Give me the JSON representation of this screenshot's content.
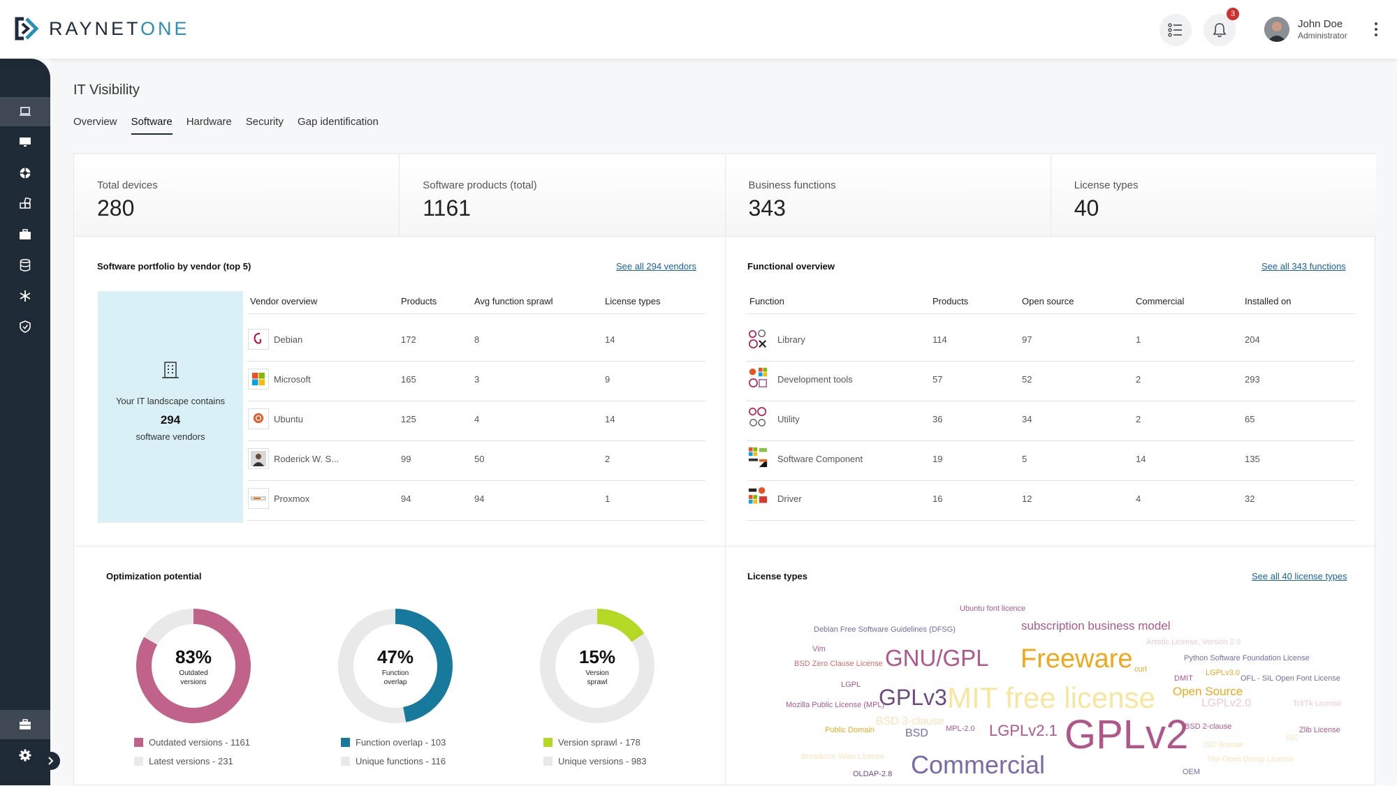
{
  "brand": {
    "name_part1": "RAYNET",
    "name_part2": "ONE"
  },
  "user": {
    "name": "John Doe",
    "role": "Administrator",
    "notifications": "3"
  },
  "page": {
    "title": "IT Visibility"
  },
  "tabs": [
    {
      "label": "Overview",
      "active": false
    },
    {
      "label": "Software",
      "active": true
    },
    {
      "label": "Hardware",
      "active": false
    },
    {
      "label": "Security",
      "active": false
    },
    {
      "label": "Gap identification",
      "active": false
    }
  ],
  "kpis": [
    {
      "label": "Total devices",
      "value": "280"
    },
    {
      "label": "Software products (total)",
      "value": "1161"
    },
    {
      "label": "Business functions",
      "value": "343"
    },
    {
      "label": "License types",
      "value": "40"
    }
  ],
  "vendors": {
    "title": "Software portfolio by vendor (top 5)",
    "link": "See all 294 vendors",
    "summary": {
      "line1": "Your IT landscape contains",
      "count": "294",
      "line2": "software vendors"
    },
    "columns": [
      "Vendor overview",
      "Products",
      "Avg function sprawl",
      "License types"
    ],
    "rows": [
      {
        "name": "Debian",
        "products": "172",
        "sprawl": "8",
        "licenses": "14"
      },
      {
        "name": "Microsoft",
        "products": "165",
        "sprawl": "3",
        "licenses": "9"
      },
      {
        "name": "Ubuntu",
        "products": "125",
        "sprawl": "4",
        "licenses": "14"
      },
      {
        "name": "Roderick W. S...",
        "products": "99",
        "sprawl": "50",
        "licenses": "2"
      },
      {
        "name": "Proxmox",
        "products": "94",
        "sprawl": "94",
        "licenses": "1"
      }
    ]
  },
  "functions": {
    "title": "Functional overview",
    "link": "See all 343 functions",
    "columns": [
      "Function",
      "Products",
      "Open source",
      "Commercial",
      "Installed on"
    ],
    "rows": [
      {
        "name": "Library",
        "products": "114",
        "open": "97",
        "commercial": "1",
        "installed": "204"
      },
      {
        "name": "Development tools",
        "products": "57",
        "open": "52",
        "commercial": "2",
        "installed": "293"
      },
      {
        "name": "Utility",
        "products": "36",
        "open": "34",
        "commercial": "2",
        "installed": "65"
      },
      {
        "name": "Software Component",
        "products": "19",
        "open": "5",
        "commercial": "14",
        "installed": "135"
      },
      {
        "name": "Driver",
        "products": "16",
        "open": "12",
        "commercial": "4",
        "installed": "32"
      }
    ]
  },
  "optimization": {
    "title": "Optimization potential",
    "donuts": [
      {
        "pct": "83%",
        "label1": "Outdated",
        "label2": "versions",
        "fraction": 0.834,
        "color": "#c0628a",
        "legend": [
          "Outdated versions - 1161",
          "Latest versions - 231"
        ]
      },
      {
        "pct": "47%",
        "label1": "Function",
        "label2": "overlap",
        "fraction": 0.47,
        "color": "#177a9c",
        "legend": [
          "Function overlap - 103",
          "Unique functions - 116"
        ]
      },
      {
        "pct": "15%",
        "label1": "Version",
        "label2": "sprawl",
        "fraction": 0.153,
        "color": "#b5d824",
        "legend": [
          "Version sprawl - 178",
          "Unique versions - 983"
        ]
      }
    ],
    "track_color": "#e9e9ea"
  },
  "license_cloud": {
    "title": "License types",
    "link": "See all 40 license types",
    "words": [
      {
        "text": "Ubuntu font licence",
        "color": "#b0578a"
      },
      {
        "text": "Debian Free Software Guidelines (DFSG)",
        "color": "#7a6aa8"
      },
      {
        "text": "subscription business model",
        "color": "#b0578a"
      },
      {
        "text": "Artistic License, Version 2.0",
        "color": "#f2c8cf"
      },
      {
        "text": "Vim",
        "color": "#b0578a"
      },
      {
        "text": "Python Software Foundation License",
        "color": "#7a6aa8"
      },
      {
        "text": "BSD Zero Clause License",
        "color": "#d96a6a"
      },
      {
        "text": "GNU/GPL",
        "color": "#b0578a"
      },
      {
        "text": "Freeware",
        "color": "#f0a81a"
      },
      {
        "text": "LGPLv3.0",
        "color": "#f0a81a"
      },
      {
        "text": "curl",
        "color": "#f0a81a"
      },
      {
        "text": "DMIT",
        "color": "#b0578a"
      },
      {
        "text": "OFL - SIL Open Font License",
        "color": "#7a6aa8"
      },
      {
        "text": "LGPL",
        "color": "#b0578a"
      },
      {
        "text": "Open Source",
        "color": "#f0a81a"
      },
      {
        "text": "GPLv3",
        "color": "#6a4b80"
      },
      {
        "text": "MIT free license",
        "color": "#f7e79e"
      },
      {
        "text": "Tcl/Tk License",
        "color": "#f2c8cf"
      },
      {
        "text": "Mozilla Public License (MPL)",
        "color": "#b0578a"
      },
      {
        "text": "LGPLv2.0",
        "color": "#f2c8cf"
      },
      {
        "text": "BSD 3-clause",
        "color": "#fbe3b8"
      },
      {
        "text": "BSD 2-clause",
        "color": "#b0578a"
      },
      {
        "text": "Public Domain",
        "color": "#f0a81a"
      },
      {
        "text": "BSD",
        "color": "#7a6aa8"
      },
      {
        "text": "MPL-2.0",
        "color": "#b0578a"
      },
      {
        "text": "LGPLv2.1",
        "color": "#b0578a"
      },
      {
        "text": "GPLv2",
        "color": "#b0578a"
      },
      {
        "text": "Zlib License",
        "color": "#b0578a"
      },
      {
        "text": "ISC",
        "color": "#fbe3b8"
      },
      {
        "text": "ISO license",
        "color": "#fbe3b8"
      },
      {
        "text": "Broadcom Wlan License",
        "color": "#fbe3b8"
      },
      {
        "text": "The Open Group License",
        "color": "#fbe3b8"
      },
      {
        "text": "Commercial",
        "color": "#7a6aa8"
      },
      {
        "text": "OLDAP-2.8",
        "color": "#6a4b80"
      },
      {
        "text": "OEM",
        "color": "#7a6aa8"
      }
    ]
  }
}
